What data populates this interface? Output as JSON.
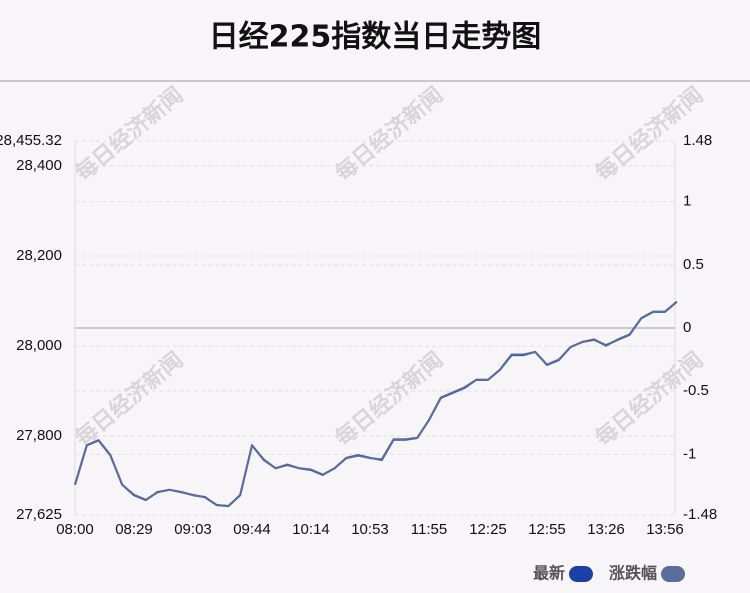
{
  "chart_data": {
    "type": "line",
    "title": "日经225指数当日走势图",
    "watermark": "每日经济新闻",
    "categories": [
      "08:00",
      null,
      null,
      null,
      null,
      "08:29",
      null,
      null,
      null,
      null,
      "09:03",
      null,
      null,
      null,
      null,
      "09:44",
      null,
      null,
      null,
      null,
      "10:14",
      null,
      null,
      null,
      null,
      "10:53",
      null,
      null,
      null,
      null,
      "11:55",
      null,
      null,
      null,
      null,
      "12:25",
      null,
      null,
      null,
      null,
      "12:55",
      null,
      null,
      null,
      null,
      "13:26",
      null,
      null,
      null,
      null,
      "13:56",
      null
    ],
    "series": [
      {
        "name": "最新",
        "color": "#1d40a8",
        "values": [
          27692,
          27780,
          27791,
          27758,
          27692,
          27669,
          27658,
          27676,
          27681,
          27676,
          27669,
          27665,
          27647,
          27645,
          27669,
          27780,
          27747,
          27729,
          27736,
          27729,
          27725,
          27714,
          27729,
          27752,
          27758,
          27752,
          27747,
          27792,
          27792,
          27796,
          27836,
          27885,
          27896,
          27907,
          27925,
          27925,
          27947,
          27980,
          27980,
          27987,
          27958,
          27969,
          27998,
          28009,
          28014,
          28002,
          28014,
          28025,
          28062,
          28076,
          28076,
          28098
        ]
      },
      {
        "name": "涨跌幅",
        "color": "#5a6d9b",
        "axis": "y2",
        "values": [
          -1.24,
          -0.93,
          -0.89,
          -1.01,
          -1.24,
          -1.32,
          -1.36,
          -1.3,
          -1.28,
          -1.3,
          -1.32,
          -1.34,
          -1.4,
          -1.41,
          -1.32,
          -0.93,
          -1.04,
          -1.11,
          -1.08,
          -1.11,
          -1.12,
          -1.16,
          -1.11,
          -1.03,
          -1.01,
          -1.03,
          -1.04,
          -0.88,
          -0.88,
          -0.87,
          -0.73,
          -0.55,
          -0.51,
          -0.47,
          -0.41,
          -0.41,
          -0.33,
          -0.21,
          -0.21,
          -0.19,
          -0.29,
          -0.25,
          -0.15,
          -0.11,
          -0.09,
          -0.14,
          -0.09,
          -0.05,
          0.08,
          0.13,
          0.13,
          0.21
        ]
      }
    ],
    "ylim": [
      27625,
      28455.32
    ],
    "yticks": [
      {
        "value": 27625,
        "label": "27,625"
      },
      {
        "value": 27800,
        "label": "27,800"
      },
      {
        "value": 28000,
        "label": "28,000"
      },
      {
        "value": 28200,
        "label": "28,200"
      },
      {
        "value": 28400,
        "label": "28,400"
      },
      {
        "value": 28455.32,
        "label": "28,455.32"
      }
    ],
    "y2lim": [
      -1.48,
      1.48
    ],
    "y2ticks": [
      -1.48,
      -1,
      -0.5,
      0,
      0.5,
      1,
      1.48
    ],
    "grid": true,
    "legend": "bottom-right"
  }
}
